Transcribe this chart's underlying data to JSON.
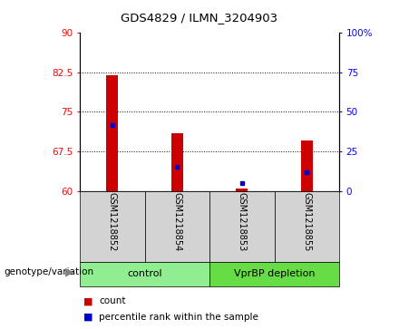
{
  "title": "GDS4829 / ILMN_3204903",
  "samples": [
    "GSM1218852",
    "GSM1218854",
    "GSM1218853",
    "GSM1218855"
  ],
  "group_labels": [
    "control",
    "VprBP depletion"
  ],
  "group_colors": [
    "#90EE90",
    "#66DD44"
  ],
  "bar_color": "#CC0000",
  "blue_color": "#0000CC",
  "ylim_left": [
    60,
    90
  ],
  "ylim_right": [
    0,
    100
  ],
  "yticks_left": [
    60,
    67.5,
    75,
    82.5,
    90
  ],
  "yticks_right": [
    0,
    25,
    50,
    75,
    100
  ],
  "ytick_labels_left": [
    "60",
    "67.5",
    "75",
    "82.5",
    "90"
  ],
  "ytick_labels_right": [
    "0",
    "25",
    "50",
    "75",
    "100%"
  ],
  "red_values": [
    82.0,
    71.0,
    60.5,
    69.5
  ],
  "blue_values": [
    72.5,
    64.5,
    61.5,
    63.5
  ],
  "hlines": [
    67.5,
    75,
    82.5
  ],
  "background_color": "#ffffff",
  "sample_box_color": "#d3d3d3",
  "legend_count_label": "count",
  "legend_pct_label": "percentile rank within the sample",
  "genotype_label": "genotype/variation"
}
